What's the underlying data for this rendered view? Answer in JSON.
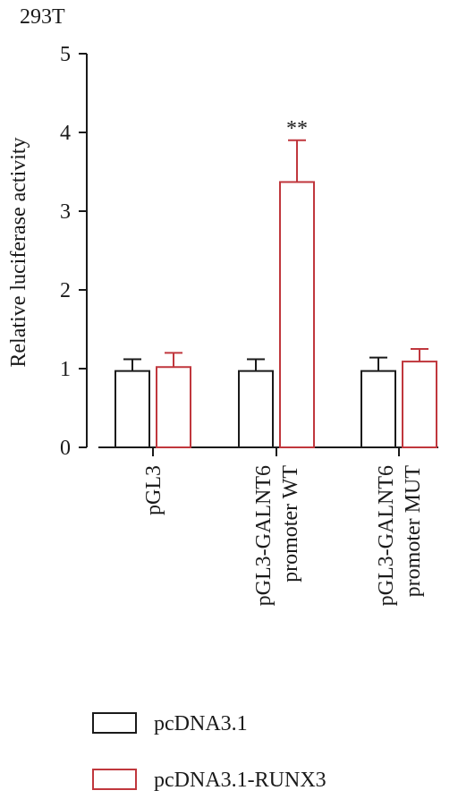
{
  "chart_data": {
    "type": "bar",
    "title": "293T",
    "ylabel": "Relative luciferase activity",
    "xlabel": "",
    "ylim": [
      0,
      5
    ],
    "yticks": [
      0,
      1,
      2,
      3,
      4,
      5
    ],
    "categories": [
      [
        "pGL3"
      ],
      [
        "pGL3-GALNT6",
        "promoter WT"
      ],
      [
        "pGL3-GALNT6",
        "promoter MUT"
      ]
    ],
    "series": [
      {
        "name": "pcDNA3.1",
        "color": "#1a1a1a",
        "values": [
          0.97,
          0.97,
          0.97
        ],
        "errors": [
          0.15,
          0.15,
          0.17
        ]
      },
      {
        "name": "pcDNA3.1-RUNX3",
        "color": "#c0373d",
        "values": [
          1.02,
          3.37,
          1.09
        ],
        "errors": [
          0.18,
          0.53,
          0.16
        ]
      }
    ],
    "annotations": [
      {
        "text": "**",
        "category": 1,
        "series": 1
      }
    ],
    "legend_position": "bottom",
    "grid": false
  }
}
